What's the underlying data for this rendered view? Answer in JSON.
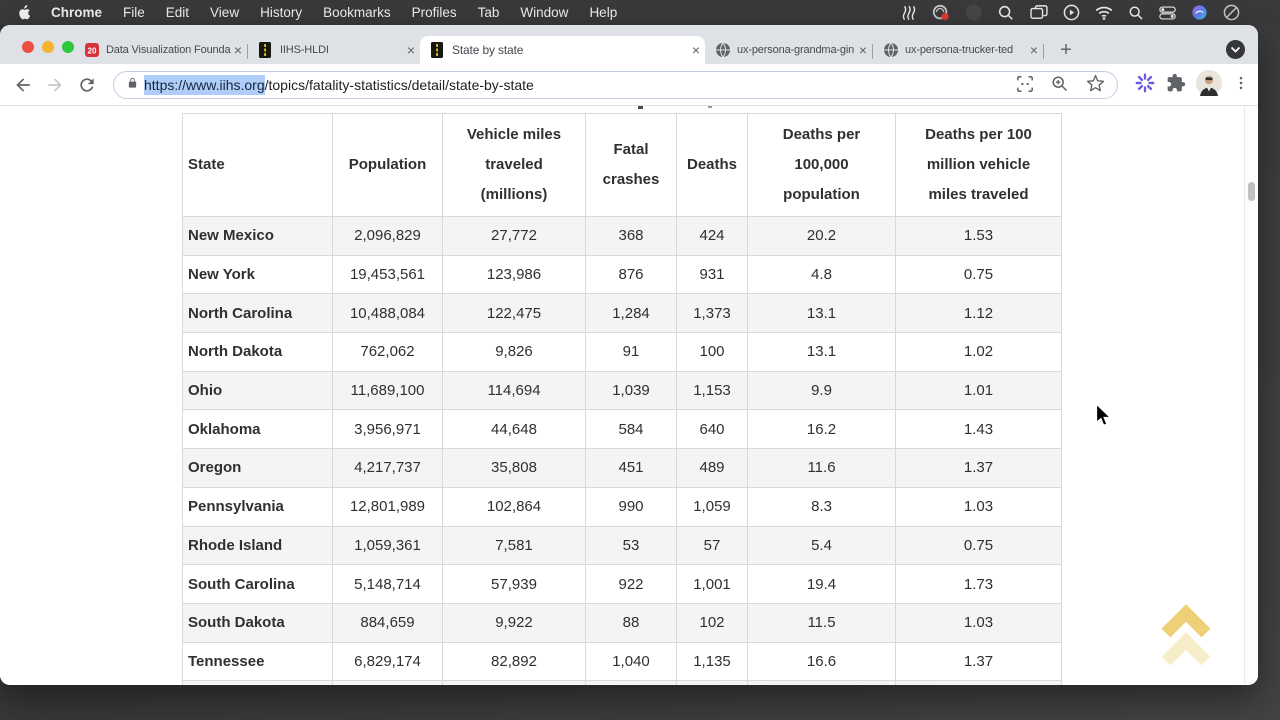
{
  "menu_bar": {
    "items": [
      "Chrome",
      "File",
      "Edit",
      "View",
      "History",
      "Bookmarks",
      "Profiles",
      "Tab",
      "Window",
      "Help"
    ]
  },
  "tab_strip": {
    "tabs": [
      {
        "title": "Data Visualization Founda",
        "favicon": "chart-20-icon"
      },
      {
        "title": "IIHS-HLDI",
        "favicon": "road-icon"
      },
      {
        "title": "State by state",
        "favicon": "road-icon",
        "active": true
      },
      {
        "title": "ux-persona-grandma-gin",
        "favicon": "globe-icon"
      },
      {
        "title": "ux-persona-trucker-ted",
        "favicon": "globe-icon"
      }
    ],
    "new_tab_label": "+",
    "close_label": "×"
  },
  "toolbar": {
    "url_selected": "https://www.iihs.org",
    "url_rest": "/topics/fatality-statistics/detail/state-by-state"
  },
  "table": {
    "headers": [
      "State",
      "Population",
      "Vehicle miles traveled (millions)",
      "Fatal crashes",
      "Deaths",
      "Deaths per 100,000 population",
      "Deaths per 100 million vehicle miles traveled"
    ],
    "rows": [
      [
        "New Mexico",
        "2,096,829",
        "27,772",
        "368",
        "424",
        "20.2",
        "1.53"
      ],
      [
        "New York",
        "19,453,561",
        "123,986",
        "876",
        "931",
        "4.8",
        "0.75"
      ],
      [
        "North Carolina",
        "10,488,084",
        "122,475",
        "1,284",
        "1,373",
        "13.1",
        "1.12"
      ],
      [
        "North Dakota",
        "762,062",
        "9,826",
        "91",
        "100",
        "13.1",
        "1.02"
      ],
      [
        "Ohio",
        "11,689,100",
        "114,694",
        "1,039",
        "1,153",
        "9.9",
        "1.01"
      ],
      [
        "Oklahoma",
        "3,956,971",
        "44,648",
        "584",
        "640",
        "16.2",
        "1.43"
      ],
      [
        "Oregon",
        "4,217,737",
        "35,808",
        "451",
        "489",
        "11.6",
        "1.37"
      ],
      [
        "Pennsylvania",
        "12,801,989",
        "102,864",
        "990",
        "1,059",
        "8.3",
        "1.03"
      ],
      [
        "Rhode Island",
        "1,059,361",
        "7,581",
        "53",
        "57",
        "5.4",
        "0.75"
      ],
      [
        "South Carolina",
        "5,148,714",
        "57,939",
        "922",
        "1,001",
        "19.4",
        "1.73"
      ],
      [
        "South Dakota",
        "884,659",
        "9,922",
        "88",
        "102",
        "11.5",
        "1.03"
      ],
      [
        "Tennessee",
        "6,829,174",
        "82,892",
        "1,040",
        "1,135",
        "16.6",
        "1.37"
      ]
    ]
  }
}
